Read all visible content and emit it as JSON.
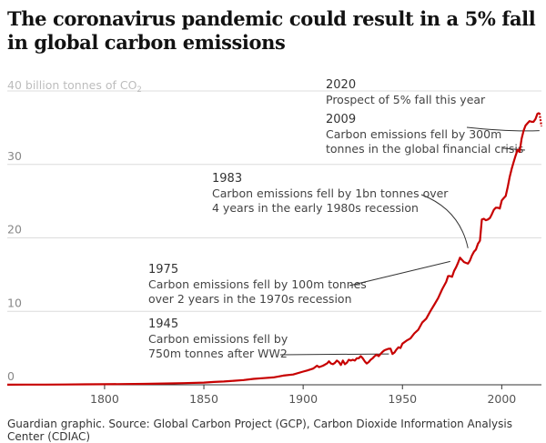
{
  "title": "The coronavirus pandemic could result in a 5% fall in global carbon emissions",
  "source": "Guardian graphic. Source: Global Carbon Project (GCP), Carbon Dioxide Information Analysis Center (CDIAC)",
  "colors": {
    "line": "#c70000",
    "grid": "#dcdcdc",
    "axis": "#333333",
    "annotation": "#333333",
    "ylabel": "#bdbdbd"
  },
  "chart_data": {
    "type": "line",
    "ylabel_prefix": "40 billion tonnes of CO",
    "ylabel_subscript": "2",
    "ylim": [
      0,
      40
    ],
    "xlim": [
      1751,
      2020
    ],
    "yticks": [
      "0",
      "10",
      "20",
      "30"
    ],
    "ytick_values": [
      0,
      10,
      20,
      30
    ],
    "xticks": [
      "1800",
      "1850",
      "1900",
      "1950",
      "2000"
    ],
    "xtick_values": [
      1800,
      1850,
      1900,
      1950,
      2000
    ],
    "grid": true,
    "series": [
      {
        "x": [
          1751,
          1760,
          1770,
          1780,
          1790,
          1800,
          1810,
          1820,
          1830,
          1840,
          1850,
          1855,
          1860,
          1865,
          1870,
          1875,
          1880,
          1885,
          1890,
          1895,
          1900,
          1902,
          1905,
          1907,
          1908,
          1910,
          1912,
          1913,
          1914,
          1915,
          1916,
          1917,
          1918,
          1919,
          1920,
          1921,
          1922,
          1923,
          1924,
          1925,
          1926,
          1927,
          1928,
          1929,
          1930,
          1931,
          1932,
          1933,
          1934,
          1935,
          1936,
          1937,
          1938,
          1939,
          1940,
          1941,
          1942,
          1943,
          1944,
          1945,
          1946,
          1947,
          1948,
          1949,
          1950,
          1952,
          1954,
          1956,
          1958,
          1960,
          1962,
          1964,
          1966,
          1968,
          1970,
          1972,
          1973,
          1974,
          1975,
          1976,
          1977,
          1978,
          1979,
          1980,
          1981,
          1982,
          1983,
          1984,
          1985,
          1986,
          1987,
          1988,
          1989,
          1990,
          1991,
          1992,
          1993,
          1994,
          1995,
          1996,
          1997,
          1998,
          1999,
          2000,
          2001,
          2002,
          2003,
          2004,
          2005,
          2006,
          2007,
          2008,
          2009,
          2010,
          2011,
          2012,
          2013,
          2014,
          2015,
          2016,
          2017,
          2018,
          2019,
          2020
        ],
        "values": [
          0.01,
          0.02,
          0.03,
          0.04,
          0.06,
          0.08,
          0.1,
          0.12,
          0.17,
          0.22,
          0.3,
          0.38,
          0.45,
          0.55,
          0.65,
          0.8,
          0.9,
          1.0,
          1.25,
          1.4,
          1.8,
          1.95,
          2.2,
          2.6,
          2.4,
          2.6,
          2.9,
          3.2,
          2.9,
          2.8,
          3.0,
          3.3,
          3.1,
          2.7,
          3.3,
          2.8,
          3.0,
          3.4,
          3.3,
          3.4,
          3.3,
          3.6,
          3.6,
          3.9,
          3.6,
          3.2,
          2.9,
          3.1,
          3.4,
          3.6,
          3.9,
          4.1,
          3.9,
          4.2,
          4.5,
          4.7,
          4.8,
          4.9,
          4.9,
          4.2,
          4.4,
          4.8,
          5.1,
          5.0,
          5.6,
          6.0,
          6.3,
          7.0,
          7.5,
          8.5,
          9.0,
          10.0,
          10.9,
          11.8,
          13.0,
          14.0,
          14.8,
          14.8,
          14.7,
          15.5,
          16.0,
          16.6,
          17.3,
          17.0,
          16.7,
          16.6,
          16.5,
          16.9,
          17.6,
          18.1,
          18.4,
          19.2,
          19.6,
          22.5,
          22.6,
          22.4,
          22.5,
          22.7,
          23.2,
          23.8,
          24.1,
          24.1,
          24.0,
          25.1,
          25.4,
          25.7,
          26.9,
          28.3,
          29.4,
          30.3,
          31.2,
          32.0,
          31.7,
          33.5,
          34.6,
          35.3,
          35.6,
          35.9,
          35.8,
          35.8,
          36.2,
          36.9,
          37.0,
          35.2
        ]
      }
    ],
    "annotations": [
      {
        "id": "a2020",
        "year": "2020",
        "text": [
          "Prospect of 5% fall this year"
        ],
        "x": 2019,
        "y": 34.6
      },
      {
        "id": "a2009",
        "year": "2009",
        "text": [
          "Carbon emissions fell by 300m",
          "tonnes in the global financial crisis"
        ],
        "x": 2009,
        "y": 31.7
      },
      {
        "id": "a1983",
        "year": "1983",
        "text": [
          "Carbon emissions fell by 1bn tonnes over",
          "4 years in the early 1980s recession"
        ],
        "x": 1983,
        "y": 18.6
      },
      {
        "id": "a1975",
        "year": "1975",
        "text": [
          "Carbon emissions fell by 100m tonnes",
          "over 2 years in the 1970s recession"
        ],
        "x": 1975,
        "y": 16.8
      },
      {
        "id": "a1945",
        "year": "1945",
        "text": [
          "Carbon emissions fell by",
          "750m tonnes after WW2"
        ],
        "x": 1945,
        "y": 4.2
      }
    ]
  }
}
